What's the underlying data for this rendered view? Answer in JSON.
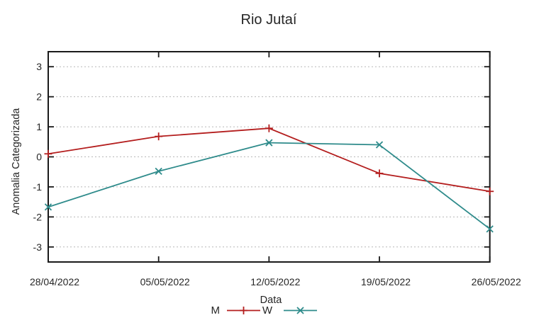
{
  "chart_data": {
    "type": "line",
    "title": "Rio Jutaí",
    "xlabel": "Data",
    "ylabel": "Anomalia Categorizada",
    "categories": [
      "28/04/2022",
      "05/05/2022",
      "12/05/2022",
      "19/05/2022",
      "26/05/2022"
    ],
    "series": [
      {
        "name": "M",
        "marker": "plus",
        "color": "#b41e1e",
        "values": [
          0.1,
          0.68,
          0.95,
          -0.55,
          -1.15
        ]
      },
      {
        "name": "W",
        "marker": "x",
        "color": "#2e8b8b",
        "values": [
          -1.67,
          -0.48,
          0.47,
          0.4,
          -2.4
        ]
      }
    ],
    "ylim": [
      -3.5,
      3.5
    ],
    "yticks": [
      -3,
      -2,
      -1,
      0,
      1,
      2,
      3
    ],
    "grid": "horizontal-dotted",
    "legend_position": "bottom-center",
    "colors": {
      "border": "#1a1a1a",
      "grid": "#b8b8b8",
      "text": "#262626"
    }
  }
}
